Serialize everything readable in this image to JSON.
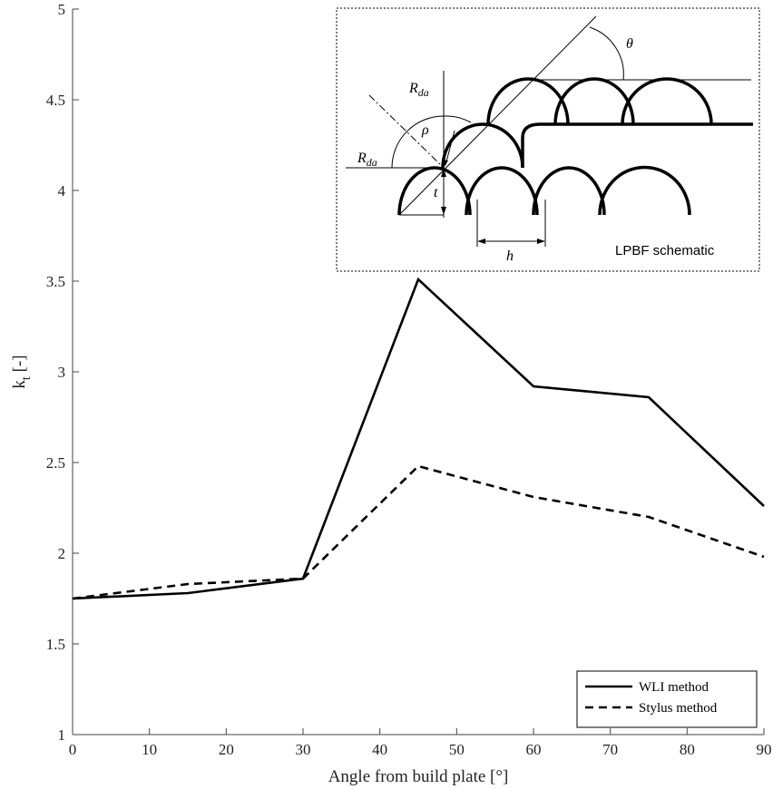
{
  "chart_data": {
    "type": "line",
    "xlabel": "Angle from build plate [°]",
    "ylabel": "k",
    "ylabel_sub": "t",
    "ylabel_unit": " [-]",
    "xlim": [
      0,
      90
    ],
    "ylim": [
      1,
      5
    ],
    "xticks": [
      0,
      10,
      20,
      30,
      40,
      50,
      60,
      70,
      80,
      90
    ],
    "yticks": [
      1,
      1.5,
      2,
      2.5,
      3,
      3.5,
      4,
      4.5,
      5
    ],
    "ytick_labels": [
      "1",
      "1.5",
      "2",
      "2.5",
      "3",
      "3.5",
      "4",
      "4.5",
      "5"
    ],
    "grid": false,
    "legend_position": "bottom-right",
    "series": [
      {
        "name": "WLI method",
        "style": "solid",
        "x": [
          0,
          15,
          30,
          45,
          60,
          75,
          90
        ],
        "y": [
          1.75,
          1.78,
          1.86,
          3.51,
          2.92,
          2.86,
          2.26
        ]
      },
      {
        "name": "Stylus method",
        "style": "dashed",
        "x": [
          0,
          15,
          30,
          45,
          60,
          75,
          90
        ],
        "y": [
          1.75,
          1.83,
          1.86,
          2.48,
          2.31,
          2.2,
          1.98
        ]
      }
    ]
  },
  "inset": {
    "title": "LPBF schematic",
    "labels": {
      "theta": "θ",
      "rda_top_main": "R",
      "rda_top_sub": "da",
      "rda_left_main": "R",
      "rda_left_sub": "da",
      "rho": "ρ",
      "t": "t",
      "h": "h"
    }
  }
}
